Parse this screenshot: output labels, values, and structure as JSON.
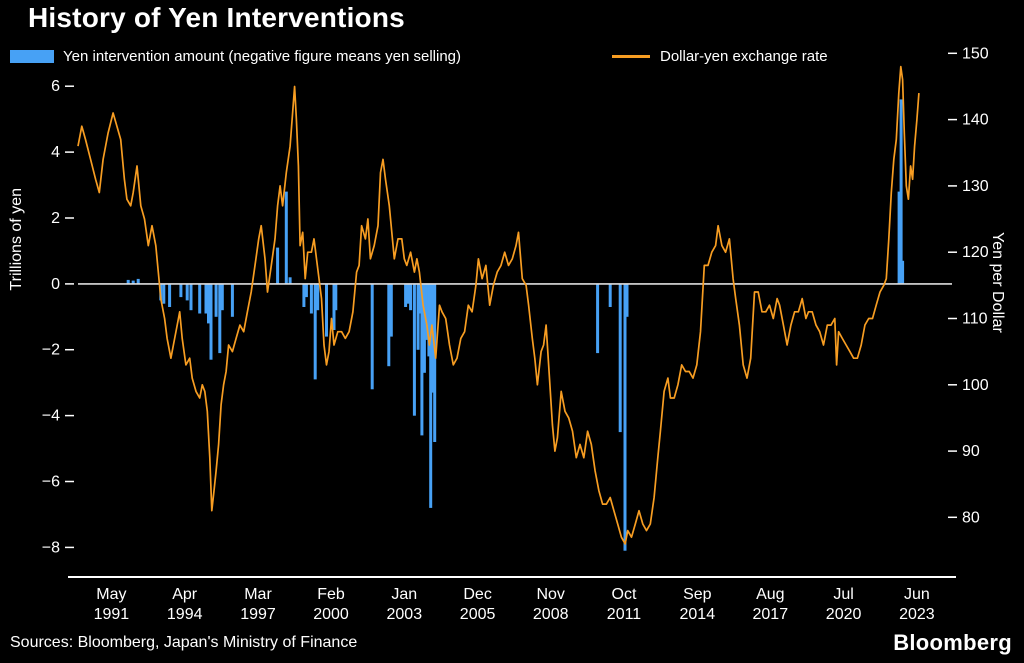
{
  "title": "History of Yen Interventions",
  "legend": {
    "bars_label": "Yen intervention amount (negative figure means yen selling)",
    "line_label": "Dollar-yen exchange rate"
  },
  "left_axis": {
    "title": "Trillions of yen",
    "ticks": [
      6,
      4,
      2,
      0,
      -2,
      -4,
      -6,
      -8
    ],
    "domain": [
      -8.9,
      7.1
    ]
  },
  "right_axis": {
    "title": "Yen per Dollar",
    "ticks": [
      150,
      140,
      130,
      120,
      110,
      100,
      90,
      80
    ],
    "domain": [
      71,
      150.5
    ]
  },
  "x_axis": {
    "domain": [
      1990.0,
      2024.5
    ],
    "ticks": [
      {
        "month": "May",
        "year": "1991",
        "t": 1991.33
      },
      {
        "month": "Apr",
        "year": "1994",
        "t": 1994.25
      },
      {
        "month": "Mar",
        "year": "1997",
        "t": 1997.17
      },
      {
        "month": "Feb",
        "year": "2000",
        "t": 2000.08
      },
      {
        "month": "Jan",
        "year": "2003",
        "t": 2003.0
      },
      {
        "month": "Dec",
        "year": "2005",
        "t": 2005.92
      },
      {
        "month": "Nov",
        "year": "2008",
        "t": 2008.83
      },
      {
        "month": "Oct",
        "year": "2011",
        "t": 2011.75
      },
      {
        "month": "Sep",
        "year": "2014",
        "t": 2014.67
      },
      {
        "month": "Aug",
        "year": "2017",
        "t": 2017.58
      },
      {
        "month": "Jul",
        "year": "2020",
        "t": 2020.5
      },
      {
        "month": "Jun",
        "year": "2023",
        "t": 2023.42
      }
    ]
  },
  "footer": {
    "sources": "Sources: Bloomberg, Japan's Ministry of Finance",
    "brand": "Bloomberg"
  },
  "colors": {
    "background": "#000000",
    "bar": "#47A1F5",
    "line": "#F79D22",
    "text": "#FFFFFF",
    "zero_line": "#DEDEDE",
    "baseline": "#FFFFFF"
  },
  "chart_data": {
    "type": "bar+line",
    "title": "History of Yen Interventions",
    "x_unit": "decimal_year",
    "left_ylim": [
      -8.9,
      7.1
    ],
    "right_ylim": [
      71,
      150.5
    ],
    "xlim": [
      1990.0,
      2024.5
    ],
    "grid": false,
    "legend_position": "top",
    "bar_series": {
      "name": "Yen intervention amount (negative figure means yen selling)",
      "unit": "trillions of yen",
      "axis": "left",
      "points": [
        [
          1992.0,
          0.12
        ],
        [
          1992.2,
          0.1
        ],
        [
          1992.4,
          0.15
        ],
        [
          1993.3,
          -0.5
        ],
        [
          1993.42,
          -0.6
        ],
        [
          1993.65,
          -0.7
        ],
        [
          1994.1,
          -0.4
        ],
        [
          1994.35,
          -0.5
        ],
        [
          1994.5,
          -0.8
        ],
        [
          1994.85,
          -0.9
        ],
        [
          1995.1,
          -0.9
        ],
        [
          1995.2,
          -1.2
        ],
        [
          1995.3,
          -2.3
        ],
        [
          1995.5,
          -1.0
        ],
        [
          1995.65,
          -2.1
        ],
        [
          1995.75,
          -0.8
        ],
        [
          1996.15,
          -1.0
        ],
        [
          1997.95,
          1.1
        ],
        [
          1998.3,
          2.8
        ],
        [
          1998.45,
          0.2
        ],
        [
          1999.0,
          -0.7
        ],
        [
          1999.1,
          -0.4
        ],
        [
          1999.3,
          -0.9
        ],
        [
          1999.45,
          -2.9
        ],
        [
          1999.55,
          -0.8
        ],
        [
          1999.9,
          -1.6
        ],
        [
          2000.2,
          -1.4
        ],
        [
          2000.27,
          -0.8
        ],
        [
          2001.72,
          -3.2
        ],
        [
          2002.38,
          -2.5
        ],
        [
          2002.48,
          -1.6
        ],
        [
          2003.05,
          -0.7
        ],
        [
          2003.15,
          -0.6
        ],
        [
          2003.25,
          -0.8
        ],
        [
          2003.4,
          -4.0
        ],
        [
          2003.55,
          -2.0
        ],
        [
          2003.62,
          -0.9
        ],
        [
          2003.7,
          -4.6
        ],
        [
          2003.8,
          -2.7
        ],
        [
          2003.9,
          -1.7
        ],
        [
          2003.98,
          -2.2
        ],
        [
          2004.05,
          -6.8
        ],
        [
          2004.13,
          -3.3
        ],
        [
          2004.21,
          -4.8
        ],
        [
          2010.7,
          -2.1
        ],
        [
          2011.2,
          -0.7
        ],
        [
          2011.6,
          -4.5
        ],
        [
          2011.79,
          -8.1
        ],
        [
          2011.87,
          -1.0
        ],
        [
          2022.71,
          2.8
        ],
        [
          2022.79,
          5.6
        ],
        [
          2022.85,
          0.7
        ]
      ]
    },
    "line_series": {
      "name": "Dollar-yen exchange rate",
      "unit": "yen per dollar",
      "axis": "right",
      "points": [
        [
          1990.0,
          136
        ],
        [
          1990.15,
          139
        ],
        [
          1990.3,
          137
        ],
        [
          1990.5,
          134
        ],
        [
          1990.7,
          131
        ],
        [
          1990.85,
          129
        ],
        [
          1991.0,
          134
        ],
        [
          1991.2,
          138
        ],
        [
          1991.4,
          141
        ],
        [
          1991.55,
          139
        ],
        [
          1991.7,
          137
        ],
        [
          1991.85,
          131
        ],
        [
          1991.95,
          128
        ],
        [
          1992.1,
          127
        ],
        [
          1992.2,
          129
        ],
        [
          1992.35,
          133
        ],
        [
          1992.5,
          127
        ],
        [
          1992.65,
          125
        ],
        [
          1992.8,
          121
        ],
        [
          1992.95,
          124
        ],
        [
          1993.1,
          121
        ],
        [
          1993.2,
          117
        ],
        [
          1993.3,
          113
        ],
        [
          1993.45,
          110
        ],
        [
          1993.55,
          107
        ],
        [
          1993.7,
          104
        ],
        [
          1993.8,
          106
        ],
        [
          1993.95,
          109
        ],
        [
          1994.05,
          111
        ],
        [
          1994.15,
          107
        ],
        [
          1994.3,
          103
        ],
        [
          1994.45,
          104
        ],
        [
          1994.55,
          101
        ],
        [
          1994.7,
          99
        ],
        [
          1994.85,
          98
        ],
        [
          1994.95,
          100
        ],
        [
          1995.05,
          99
        ],
        [
          1995.15,
          96
        ],
        [
          1995.25,
          89
        ],
        [
          1995.33,
          81
        ],
        [
          1995.42,
          84
        ],
        [
          1995.5,
          87
        ],
        [
          1995.6,
          91
        ],
        [
          1995.7,
          97
        ],
        [
          1995.8,
          100
        ],
        [
          1995.9,
          102
        ],
        [
          1996.0,
          106
        ],
        [
          1996.15,
          105
        ],
        [
          1996.3,
          107
        ],
        [
          1996.45,
          109
        ],
        [
          1996.6,
          108
        ],
        [
          1996.75,
          111
        ],
        [
          1996.9,
          114
        ],
        [
          1997.05,
          118
        ],
        [
          1997.2,
          122
        ],
        [
          1997.3,
          124
        ],
        [
          1997.45,
          119
        ],
        [
          1997.55,
          114
        ],
        [
          1997.7,
          118
        ],
        [
          1997.85,
          122
        ],
        [
          1997.95,
          127
        ],
        [
          1998.05,
          130
        ],
        [
          1998.15,
          127
        ],
        [
          1998.3,
          132
        ],
        [
          1998.45,
          136
        ],
        [
          1998.55,
          141
        ],
        [
          1998.63,
          145
        ],
        [
          1998.7,
          140
        ],
        [
          1998.78,
          133
        ],
        [
          1998.85,
          121
        ],
        [
          1998.95,
          123
        ],
        [
          1999.05,
          116
        ],
        [
          1999.15,
          120
        ],
        [
          1999.3,
          120
        ],
        [
          1999.4,
          122
        ],
        [
          1999.5,
          119
        ],
        [
          1999.6,
          116
        ],
        [
          1999.7,
          113
        ],
        [
          1999.8,
          106
        ],
        [
          1999.9,
          103
        ],
        [
          2000.0,
          105
        ],
        [
          2000.1,
          110
        ],
        [
          2000.2,
          106
        ],
        [
          2000.35,
          108
        ],
        [
          2000.5,
          108
        ],
        [
          2000.65,
          107
        ],
        [
          2000.8,
          108
        ],
        [
          2000.95,
          111
        ],
        [
          2001.1,
          117
        ],
        [
          2001.2,
          118
        ],
        [
          2001.3,
          124
        ],
        [
          2001.45,
          122
        ],
        [
          2001.55,
          125
        ],
        [
          2001.65,
          119
        ],
        [
          2001.8,
          121
        ],
        [
          2001.95,
          124
        ],
        [
          2002.05,
          132
        ],
        [
          2002.15,
          134
        ],
        [
          2002.25,
          131
        ],
        [
          2002.4,
          127
        ],
        [
          2002.5,
          123
        ],
        [
          2002.6,
          119
        ],
        [
          2002.75,
          122
        ],
        [
          2002.9,
          122
        ],
        [
          2003.0,
          119
        ],
        [
          2003.1,
          118
        ],
        [
          2003.25,
          120
        ],
        [
          2003.4,
          117
        ],
        [
          2003.5,
          119
        ],
        [
          2003.6,
          117
        ],
        [
          2003.75,
          112
        ],
        [
          2003.9,
          109
        ],
        [
          2004.0,
          106
        ],
        [
          2004.1,
          109
        ],
        [
          2004.25,
          104
        ],
        [
          2004.4,
          112
        ],
        [
          2004.5,
          111
        ],
        [
          2004.65,
          110
        ],
        [
          2004.8,
          106
        ],
        [
          2004.95,
          103
        ],
        [
          2005.1,
          104
        ],
        [
          2005.25,
          107
        ],
        [
          2005.4,
          108
        ],
        [
          2005.55,
          112
        ],
        [
          2005.7,
          111
        ],
        [
          2005.85,
          115
        ],
        [
          2005.95,
          119
        ],
        [
          2006.1,
          116
        ],
        [
          2006.25,
          118
        ],
        [
          2006.4,
          112
        ],
        [
          2006.55,
          115
        ],
        [
          2006.7,
          117
        ],
        [
          2006.85,
          118
        ],
        [
          2007.0,
          120
        ],
        [
          2007.15,
          118
        ],
        [
          2007.3,
          119
        ],
        [
          2007.45,
          121
        ],
        [
          2007.55,
          123
        ],
        [
          2007.7,
          116
        ],
        [
          2007.85,
          115
        ],
        [
          2007.95,
          112
        ],
        [
          2008.1,
          107
        ],
        [
          2008.2,
          104
        ],
        [
          2008.3,
          100
        ],
        [
          2008.45,
          105
        ],
        [
          2008.55,
          106
        ],
        [
          2008.65,
          109
        ],
        [
          2008.8,
          100
        ],
        [
          2008.9,
          94
        ],
        [
          2009.0,
          90
        ],
        [
          2009.1,
          92
        ],
        [
          2009.25,
          99
        ],
        [
          2009.4,
          96
        ],
        [
          2009.55,
          95
        ],
        [
          2009.7,
          93
        ],
        [
          2009.85,
          89
        ],
        [
          2010.0,
          91
        ],
        [
          2010.15,
          89
        ],
        [
          2010.3,
          93
        ],
        [
          2010.45,
          91
        ],
        [
          2010.6,
          87
        ],
        [
          2010.75,
          84
        ],
        [
          2010.9,
          82
        ],
        [
          2011.05,
          82
        ],
        [
          2011.2,
          83
        ],
        [
          2011.35,
          81
        ],
        [
          2011.5,
          79
        ],
        [
          2011.65,
          77
        ],
        [
          2011.8,
          76
        ],
        [
          2011.9,
          78
        ],
        [
          2012.05,
          77
        ],
        [
          2012.2,
          79
        ],
        [
          2012.35,
          81
        ],
        [
          2012.5,
          79
        ],
        [
          2012.65,
          78
        ],
        [
          2012.8,
          79
        ],
        [
          2012.95,
          83
        ],
        [
          2013.1,
          89
        ],
        [
          2013.2,
          93
        ],
        [
          2013.35,
          99
        ],
        [
          2013.5,
          101
        ],
        [
          2013.6,
          98
        ],
        [
          2013.75,
          98
        ],
        [
          2013.9,
          100
        ],
        [
          2014.05,
          103
        ],
        [
          2014.2,
          102
        ],
        [
          2014.35,
          102
        ],
        [
          2014.5,
          101
        ],
        [
          2014.65,
          103
        ],
        [
          2014.8,
          108
        ],
        [
          2014.95,
          118
        ],
        [
          2015.1,
          118
        ],
        [
          2015.25,
          120
        ],
        [
          2015.4,
          121
        ],
        [
          2015.5,
          124
        ],
        [
          2015.65,
          121
        ],
        [
          2015.8,
          120
        ],
        [
          2015.95,
          122
        ],
        [
          2016.1,
          116
        ],
        [
          2016.2,
          113
        ],
        [
          2016.35,
          109
        ],
        [
          2016.5,
          103
        ],
        [
          2016.65,
          101
        ],
        [
          2016.8,
          104
        ],
        [
          2016.95,
          114
        ],
        [
          2017.1,
          114
        ],
        [
          2017.25,
          111
        ],
        [
          2017.4,
          111
        ],
        [
          2017.55,
          112
        ],
        [
          2017.7,
          110
        ],
        [
          2017.85,
          113
        ],
        [
          2017.95,
          112
        ],
        [
          2018.1,
          109
        ],
        [
          2018.25,
          106
        ],
        [
          2018.4,
          109
        ],
        [
          2018.55,
          111
        ],
        [
          2018.7,
          111
        ],
        [
          2018.85,
          113
        ],
        [
          2019.0,
          110
        ],
        [
          2019.1,
          111
        ],
        [
          2019.25,
          111
        ],
        [
          2019.4,
          109
        ],
        [
          2019.55,
          108
        ],
        [
          2019.7,
          106
        ],
        [
          2019.85,
          109
        ],
        [
          2020.0,
          109
        ],
        [
          2020.15,
          110
        ],
        [
          2020.22,
          103
        ],
        [
          2020.3,
          108
        ],
        [
          2020.45,
          107
        ],
        [
          2020.6,
          106
        ],
        [
          2020.75,
          105
        ],
        [
          2020.9,
          104
        ],
        [
          2021.05,
          104
        ],
        [
          2021.2,
          106
        ],
        [
          2021.35,
          109
        ],
        [
          2021.5,
          110
        ],
        [
          2021.65,
          110
        ],
        [
          2021.8,
          112
        ],
        [
          2021.95,
          114
        ],
        [
          2022.1,
          115
        ],
        [
          2022.2,
          116
        ],
        [
          2022.3,
          122
        ],
        [
          2022.4,
          129
        ],
        [
          2022.5,
          134
        ],
        [
          2022.6,
          137
        ],
        [
          2022.7,
          144
        ],
        [
          2022.78,
          148
        ],
        [
          2022.85,
          146
        ],
        [
          2022.92,
          138
        ],
        [
          2023.0,
          130
        ],
        [
          2023.08,
          128
        ],
        [
          2023.17,
          133
        ],
        [
          2023.25,
          131
        ],
        [
          2023.33,
          136
        ],
        [
          2023.42,
          140
        ],
        [
          2023.5,
          144
        ]
      ]
    }
  }
}
